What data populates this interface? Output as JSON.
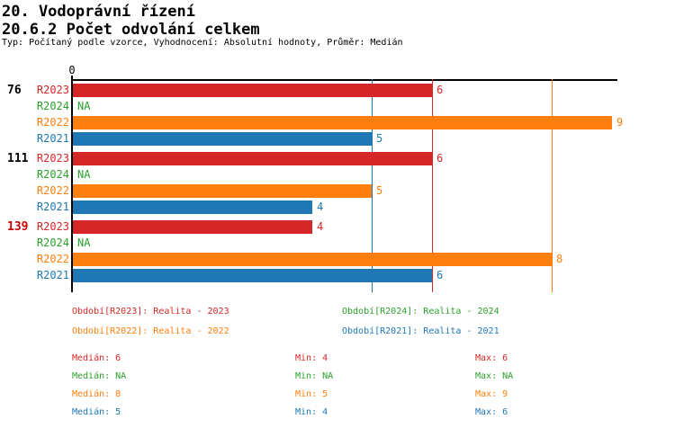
{
  "header": {
    "title1": "20. Vodoprávní řízení",
    "title2": "20.6.2 Počet odvolání celkem",
    "meta": "Typ: Počítaný podle vzorce, Vyhodnocení: Absolutní hodnoty, Průměr: Medián"
  },
  "chart_data": {
    "type": "bar",
    "orientation": "horizontal",
    "axis": {
      "origin_tick": "0",
      "value_range": [
        0,
        9
      ],
      "grid": false
    },
    "na_label": "NA",
    "series": [
      {
        "id": "R2023",
        "label": "R2023",
        "color": "#D62728",
        "median": 6,
        "min": 4,
        "max": 6
      },
      {
        "id": "R2024",
        "label": "R2024",
        "color": "#2CA02C",
        "median": null,
        "min": null,
        "max": null
      },
      {
        "id": "R2022",
        "label": "R2022",
        "color": "#FF7F0E",
        "median": 8,
        "min": 5,
        "max": 9
      },
      {
        "id": "R2021",
        "label": "R2021",
        "color": "#1F77B4",
        "median": 5,
        "min": 4,
        "max": 6
      }
    ],
    "groups": [
      {
        "label": "76",
        "label_color": "#000000",
        "values": [
          6,
          null,
          9,
          5
        ]
      },
      {
        "label": "111",
        "label_color": "#000000",
        "values": [
          6,
          null,
          5,
          4
        ]
      },
      {
        "label": "139",
        "label_color": "#CC0000",
        "values": [
          4,
          null,
          8,
          6
        ]
      }
    ]
  },
  "legend": {
    "items": [
      {
        "text": "Období[R2023]: Realita - 2023",
        "color": "#D62728",
        "row": 0,
        "col": 0
      },
      {
        "text": "Období[R2024]: Realita - 2024",
        "color": "#2CA02C",
        "row": 0,
        "col": 1
      },
      {
        "text": "Období[R2022]: Realita - 2022",
        "color": "#FF7F0E",
        "row": 1,
        "col": 0
      },
      {
        "text": "Období[R2021]: Realita - 2021",
        "color": "#1F77B4",
        "row": 1,
        "col": 1
      }
    ]
  },
  "stats": {
    "rows": [
      {
        "series": "R2023",
        "color": "#D62728",
        "cells": [
          "Medián: 6",
          "Min: 4",
          "Max: 6"
        ]
      },
      {
        "series": "R2024",
        "color": "#2CA02C",
        "cells": [
          "Medián: NA",
          "Min: NA",
          "Max: NA"
        ]
      },
      {
        "series": "R2022",
        "color": "#FF7F0E",
        "cells": [
          "Medián: 8",
          "Min: 5",
          "Max: 9"
        ]
      },
      {
        "series": "R2021",
        "color": "#1F77B4",
        "cells": [
          "Medián: 5",
          "Min: 4",
          "Max: 6"
        ]
      }
    ]
  }
}
